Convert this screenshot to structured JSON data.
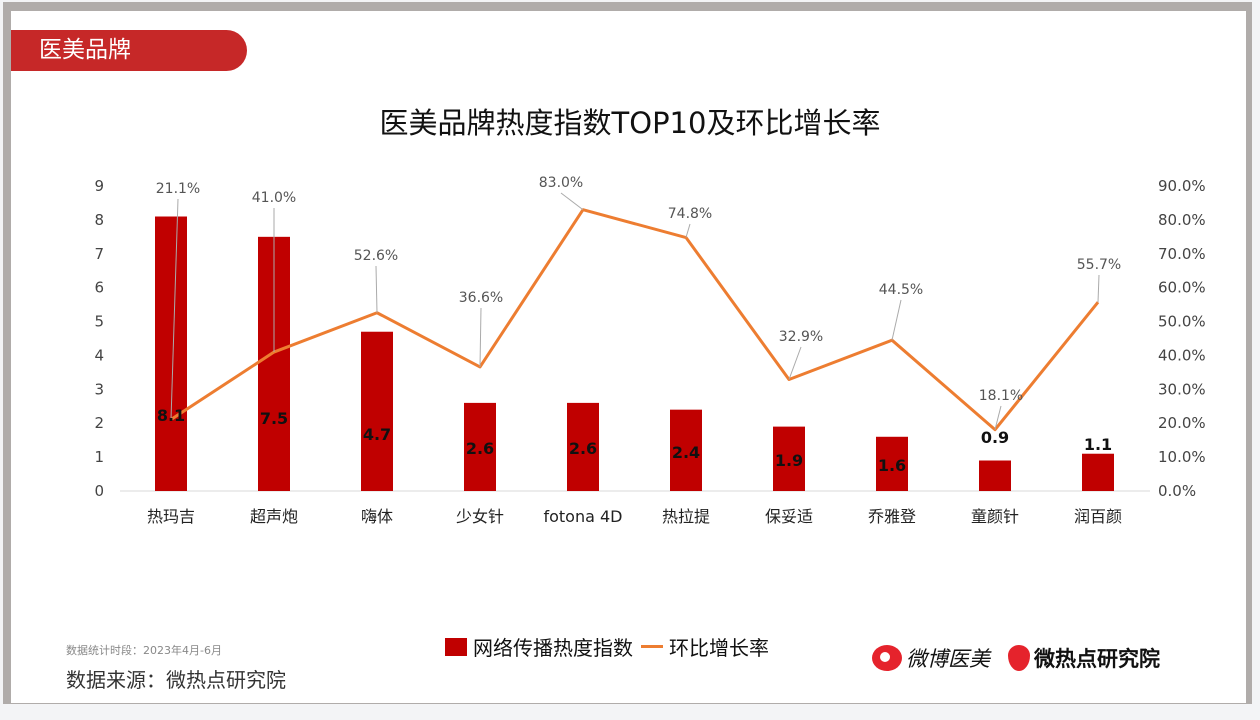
{
  "header": {
    "badge": "医美品牌"
  },
  "chart_data": {
    "type": "bar+line",
    "title": "医美品牌热度指数TOP10及环比增长率",
    "categories": [
      "热玛吉",
      "超声炮",
      "嗨体",
      "少女针",
      "fotona 4D",
      "热拉提",
      "保妥适",
      "乔雅登",
      "童颜针",
      "润百颜"
    ],
    "series": [
      {
        "name": "网络传播热度指数",
        "type": "bar",
        "axis": "left",
        "color": "#c00000",
        "values": [
          8.1,
          7.5,
          4.7,
          2.6,
          2.6,
          2.4,
          1.9,
          1.6,
          0.9,
          1.1
        ],
        "labels": [
          "8.1",
          "7.5",
          "4.7",
          "2.6",
          "2.6",
          "2.4",
          "1.9",
          "1.6",
          "0.9",
          "1.1"
        ]
      },
      {
        "name": "环比增长率",
        "type": "line",
        "axis": "right",
        "color": "#ed7d31",
        "values": [
          21.1,
          41.0,
          52.6,
          36.6,
          83.0,
          74.8,
          32.9,
          44.5,
          18.1,
          55.7
        ],
        "labels": [
          "21.1%",
          "41.0%",
          "52.6%",
          "36.6%",
          "83.0%",
          "74.8%",
          "32.9%",
          "44.5%",
          "18.1%",
          "55.7%"
        ]
      }
    ],
    "left_axis": {
      "ylim": [
        0,
        9
      ],
      "ticks": [
        "0",
        "1",
        "2",
        "3",
        "4",
        "5",
        "6",
        "7",
        "8",
        "9"
      ]
    },
    "right_axis": {
      "ylim": [
        0,
        90
      ],
      "ticks": [
        "0.0%",
        "10.0%",
        "20.0%",
        "30.0%",
        "40.0%",
        "50.0%",
        "60.0%",
        "70.0%",
        "80.0%",
        "90.0%"
      ]
    },
    "grid": false,
    "legend_position": "bottom"
  },
  "footer": {
    "period": "数据统计时段：2023年4月-6月",
    "source": "数据来源：微热点研究院",
    "logo1": "微博医美",
    "logo2": "微热点研究院"
  }
}
